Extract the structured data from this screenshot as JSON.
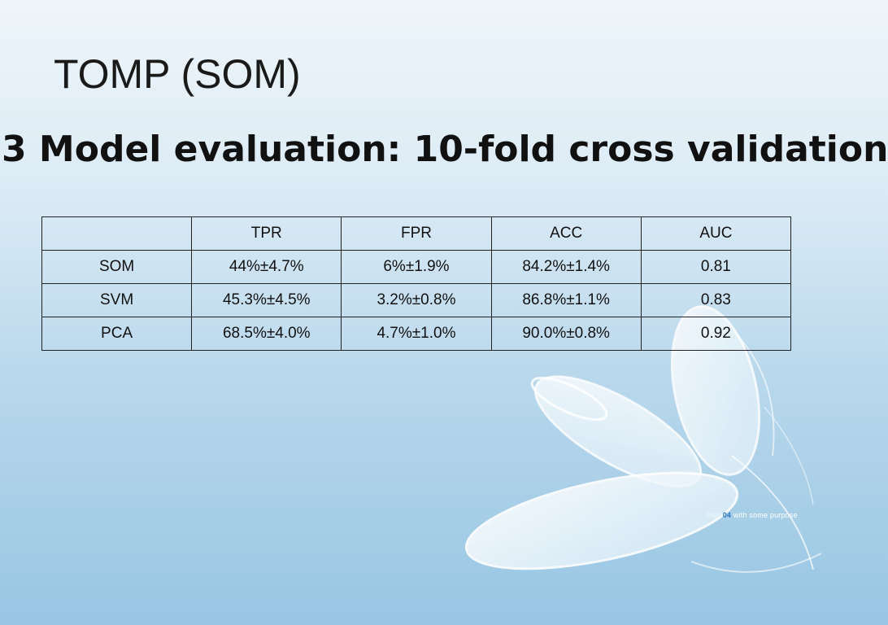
{
  "slide": {
    "title": "TOMP (SOM)",
    "subtitle": "3 Model evaluation: 10-fold cross validation"
  },
  "table": {
    "columns": [
      "",
      "TPR",
      "FPR",
      "ACC",
      "AUC"
    ],
    "rows": [
      {
        "label": "SOM",
        "tpr": "44%±4.7%",
        "fpr": "6%±1.9%",
        "acc": "84.2%±1.4%",
        "auc": "0.81"
      },
      {
        "label": "SVM",
        "tpr": "45.3%±4.5%",
        "fpr": "3.2%±0.8%",
        "acc": "86.8%±1.1%",
        "auc": "0.83"
      },
      {
        "label": "PCA",
        "tpr": "68.5%±4.0%",
        "fpr": "4.7%±1.0%",
        "acc": "90.0%±0.8%",
        "auc": "0.92"
      }
    ]
  },
  "branding": {
    "number": "04",
    "tagline": "with some purpose"
  },
  "colors": {
    "background_top": "#eef5fa",
    "background_bottom": "#98c6e3",
    "text": "#111111",
    "table_border": "#222222"
  }
}
